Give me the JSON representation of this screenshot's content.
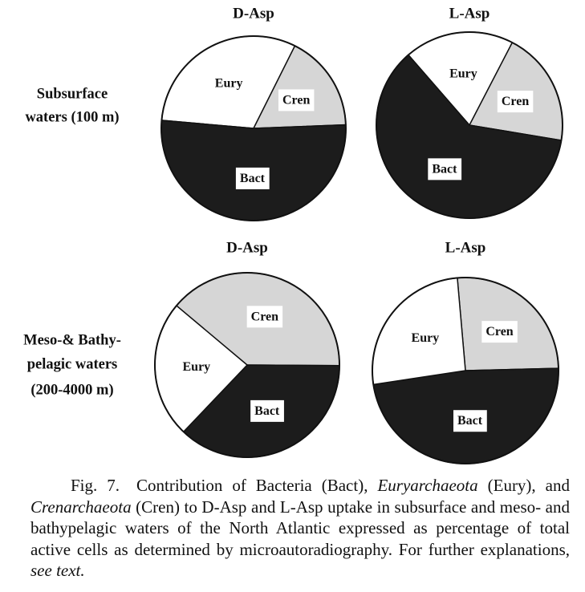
{
  "chart_data": [
    {
      "type": "pie",
      "title": "D-Asp",
      "categories": [
        "Eury",
        "Cren",
        "Bact"
      ],
      "values": [
        31,
        17,
        52
      ],
      "colors": [
        "#ffffff",
        "#d6d6d6",
        "#1c1c1c"
      ]
    },
    {
      "type": "pie",
      "title": "L-Asp",
      "categories": [
        "Eury",
        "Cren",
        "Bact"
      ],
      "values": [
        19,
        20,
        61
      ],
      "colors": [
        "#ffffff",
        "#d6d6d6",
        "#1c1c1c"
      ]
    },
    {
      "type": "pie",
      "title": "D-Asp",
      "categories": [
        "Cren",
        "Bact",
        "Eury"
      ],
      "values": [
        39,
        37,
        24
      ],
      "colors": [
        "#d6d6d6",
        "#1c1c1c",
        "#ffffff"
      ]
    },
    {
      "type": "pie",
      "title": "L-Asp",
      "categories": [
        "Cren",
        "Bact",
        "Eury"
      ],
      "values": [
        26,
        48,
        26
      ],
      "colors": [
        "#d6d6d6",
        "#1c1c1c",
        "#ffffff"
      ]
    }
  ],
  "row_labels": [
    [
      "Subsurface",
      "waters (100 m)"
    ],
    [
      "Meso-& Bathy-",
      "pelagic waters",
      "(200-4000 m)"
    ]
  ],
  "caption": {
    "runs": [
      {
        "text": "Fig. 7. Contribution of Bacteria (Bact), "
      },
      {
        "text": "Euryarchaeota",
        "italic": true
      },
      {
        "text": " (Eury), and "
      },
      {
        "text": "Crenarchaeota",
        "italic": true
      },
      {
        "text": " (Cren) to D-Asp and L-Asp uptake in subsurface and meso- and bathypelagic waters of the North Atlantic expressed as percentage of total active cells as determined by microautoradiography. For further explanations, "
      },
      {
        "text": "see text.",
        "italic": true
      }
    ]
  }
}
